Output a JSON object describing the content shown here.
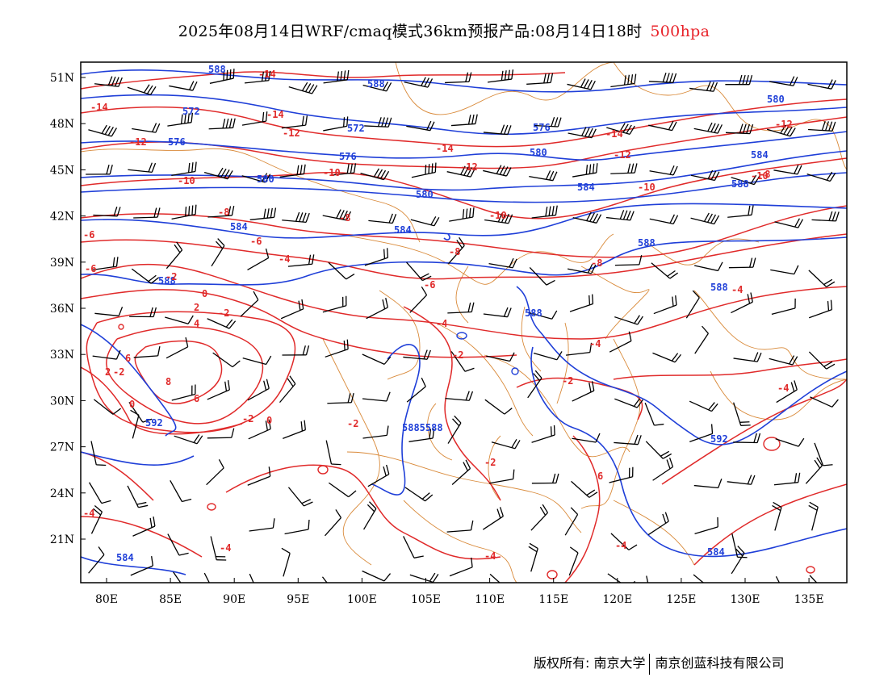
{
  "title": {
    "main": "2025年08月14日WRF/cmaq模式36km预报产品:08月14日18时",
    "level": "500hpa",
    "level_color": "#e8232a"
  },
  "axes": {
    "lon_labels": [
      "80E",
      "85E",
      "90E",
      "95E",
      "100E",
      "105E",
      "110E",
      "115E",
      "120E",
      "125E",
      "130E",
      "135E"
    ],
    "lat_labels": [
      "51N",
      "48N",
      "45N",
      "42N",
      "39N",
      "36N",
      "33N",
      "30N",
      "27N",
      "24N",
      "21N"
    ]
  },
  "colors": {
    "height_contour": "#1f3fd8",
    "temperature_contour": "#e02a2a",
    "boundaries": "#d98a3a",
    "wind_barb": "#000000"
  },
  "height_labels": [
    "588",
    "588",
    "572",
    "572",
    "576",
    "576",
    "576",
    "580",
    "580",
    "580",
    "580",
    "584",
    "584",
    "584",
    "584",
    "588",
    "588",
    "588",
    "588",
    "588",
    "592",
    "592",
    "584",
    "584",
    "5885588"
  ],
  "temperature_labels": [
    "-14",
    "-14",
    "-14",
    "-14",
    "-14",
    "-12",
    "-12",
    "-12",
    "-12",
    "-12",
    "-10",
    "-10",
    "-10",
    "-10",
    "-10",
    "-8",
    "-8",
    "-8",
    "-8",
    "-8",
    "-6",
    "-6",
    "-6",
    "-6",
    "-4",
    "-4",
    "-4",
    "-4",
    "-4",
    "-4",
    "-4",
    "-4",
    "-4",
    "-2",
    "-2",
    "-2",
    "-2",
    "-2",
    "-2",
    "-2",
    "-2",
    "0",
    "0",
    "0",
    "2",
    "2",
    "4",
    "6",
    "6",
    "6",
    "8"
  ],
  "footer": {
    "left": "版权所有: 南京大学",
    "right": "南京创蓝科技有限公司"
  }
}
